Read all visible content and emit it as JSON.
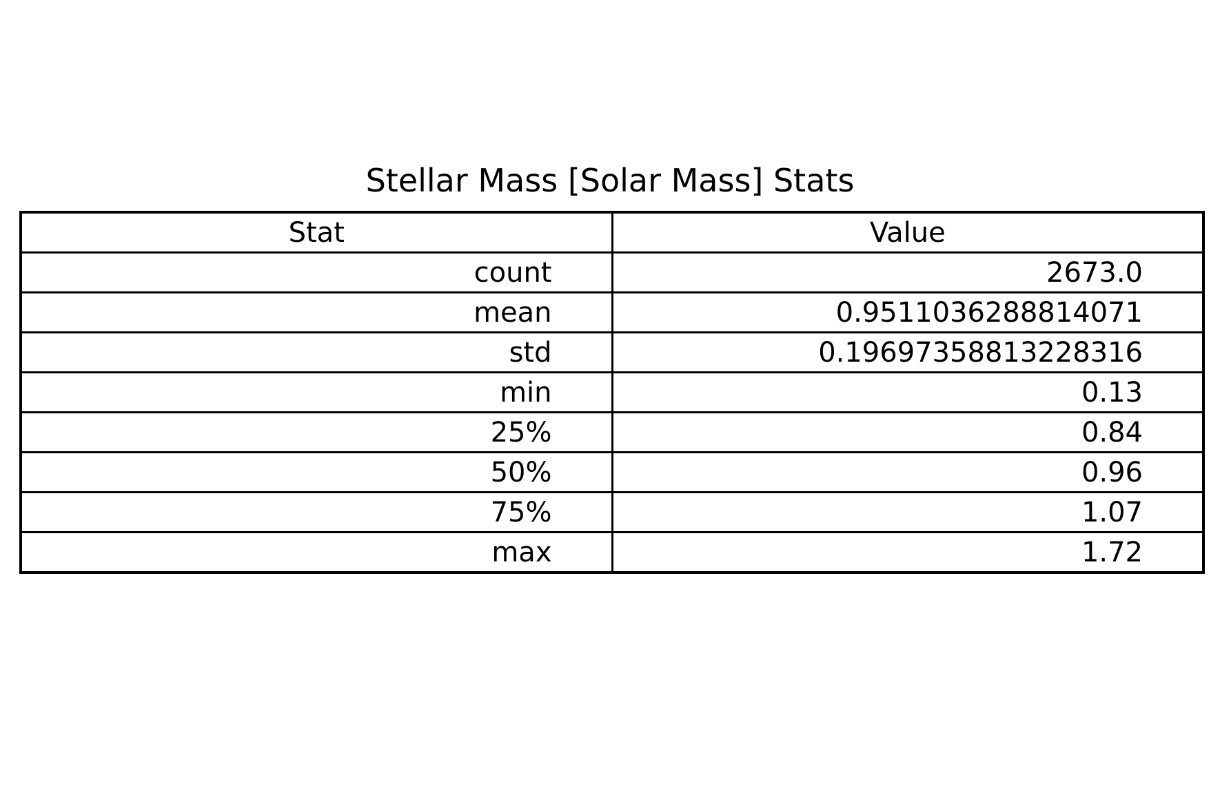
{
  "chart_data": {
    "type": "table",
    "title": "Stellar Mass [Solar Mass] Stats",
    "columns": [
      "Stat",
      "Value"
    ],
    "rows": [
      [
        "count",
        "2673.0"
      ],
      [
        "mean",
        "0.9511036288814071"
      ],
      [
        "std",
        "0.19697358813228316"
      ],
      [
        "min",
        "0.13"
      ],
      [
        "25%",
        "0.84"
      ],
      [
        "50%",
        "0.96"
      ],
      [
        "75%",
        "1.07"
      ],
      [
        "max",
        "1.72"
      ]
    ]
  }
}
